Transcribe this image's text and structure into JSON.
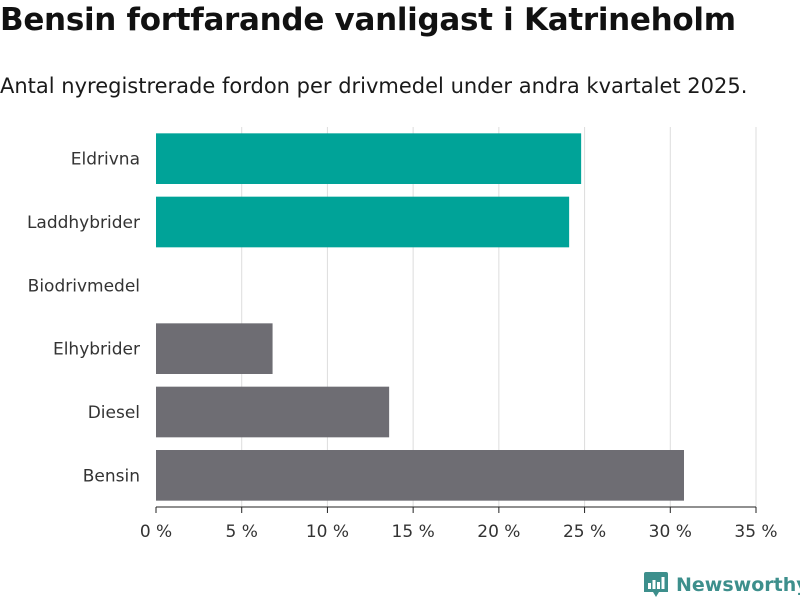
{
  "title": "Bensin fortfarande vanligast i Katrineholm",
  "subtitle": "Antal nyregistrerade fordon per drivmedel under andra kvartalet 2025.",
  "brand": {
    "name": "Newsworthy",
    "icon": "bar-chart-icon",
    "color": "#3d8f8c"
  },
  "colors": {
    "highlight": "#00a398",
    "default": "#6e6d73",
    "grid": "#dddddd",
    "axis": "#222222"
  },
  "chart_data": {
    "type": "bar",
    "orientation": "horizontal",
    "categories": [
      "Eldrivna",
      "Laddhybrider",
      "Biodrivmedel",
      "Elhybrider",
      "Diesel",
      "Bensin"
    ],
    "values": [
      24.8,
      24.1,
      0,
      6.8,
      13.6,
      30.8
    ],
    "highlighted": [
      true,
      true,
      true,
      false,
      false,
      false
    ],
    "xlim": [
      0,
      35
    ],
    "xticks": [
      0,
      5,
      10,
      15,
      20,
      25,
      30,
      35
    ],
    "xtick_labels": [
      "0 %",
      "5 %",
      "10 %",
      "15 %",
      "20 %",
      "25 %",
      "30 %",
      "35 %"
    ],
    "grid": "vertical",
    "legend": "none"
  }
}
